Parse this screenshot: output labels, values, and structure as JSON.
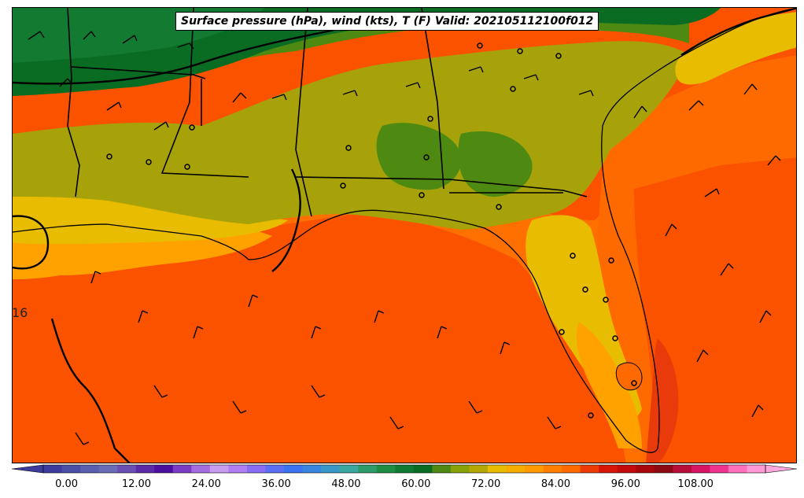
{
  "title": "Surface pressure (hPa), wind (kts), T (F) Valid: 202105112100f012",
  "isobar_label": "16",
  "colorbar": {
    "min": -4,
    "max": 120,
    "step": 4,
    "tick_labels": [
      "0.00",
      "12.00",
      "24.00",
      "36.00",
      "48.00",
      "60.00",
      "72.00",
      "84.00",
      "96.00",
      "108.00"
    ],
    "tick_values": [
      0,
      12,
      24,
      36,
      48,
      60,
      72,
      84,
      96,
      108
    ],
    "colors": [
      "#3d3b9c",
      "#4a4fa6",
      "#5a5fae",
      "#6b6cb6",
      "#6a4fb3",
      "#5a2aa8",
      "#4b0fa0",
      "#7a3cc4",
      "#a46ee0",
      "#c79df0",
      "#b27ff2",
      "#8a6cf5",
      "#5b6ff5",
      "#3c73f2",
      "#3a86de",
      "#3a98c8",
      "#3aa8a0",
      "#2e9b6a",
      "#1f8c44",
      "#117a32",
      "#0a6b22",
      "#4e8a12",
      "#88a20a",
      "#b3a806",
      "#e8bc00",
      "#f5ad00",
      "#ff9a00",
      "#ff7f00",
      "#ff6a00",
      "#ee3a05",
      "#d81608",
      "#c40a0c",
      "#a8070c",
      "#8e0a12",
      "#b80e3a",
      "#d81464",
      "#f0348e",
      "#ff70bc",
      "#ff9ad6"
    ],
    "extend_low_color": "#3d3b9c",
    "extend_high_color": "#ffa8de"
  },
  "legend_colors": {
    "cool_green": "#137a32",
    "dark_green": "#0a6b22",
    "olive": "#4e8a12",
    "khaki": "#a8a20a",
    "yellow": "#e8bc00",
    "orange_light": "#ffa200",
    "orange": "#ff7a00",
    "orange_deep": "#fb5200",
    "red": "#e83a0a"
  }
}
